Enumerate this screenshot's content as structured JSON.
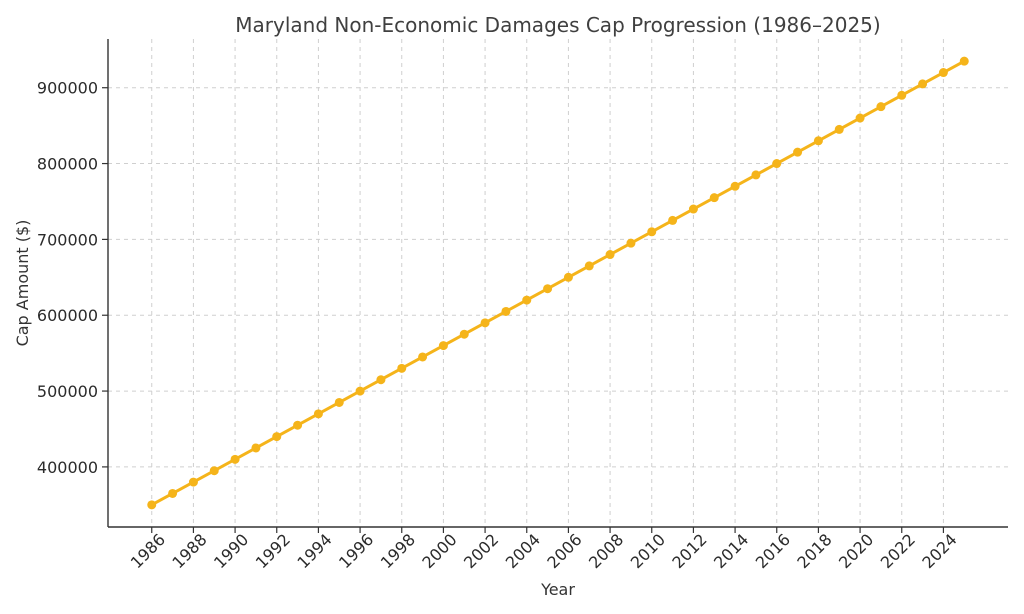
{
  "chart_data": {
    "type": "line",
    "title": "Maryland Non-Economic Damages Cap Progression (1986–2025)",
    "xlabel": "Year",
    "ylabel": "Cap Amount ($)",
    "grid": true,
    "x": [
      1986,
      1987,
      1988,
      1989,
      1990,
      1991,
      1992,
      1993,
      1994,
      1995,
      1996,
      1997,
      1998,
      1999,
      2000,
      2001,
      2002,
      2003,
      2004,
      2005,
      2006,
      2007,
      2008,
      2009,
      2010,
      2011,
      2012,
      2013,
      2014,
      2015,
      2016,
      2017,
      2018,
      2019,
      2020,
      2021,
      2022,
      2023,
      2024,
      2025
    ],
    "series": [
      {
        "values": [
          350000,
          365000,
          380000,
          395000,
          410000,
          425000,
          440000,
          455000,
          470000,
          485000,
          500000,
          515000,
          530000,
          545000,
          560000,
          575000,
          590000,
          605000,
          620000,
          635000,
          650000,
          665000,
          680000,
          695000,
          710000,
          725000,
          740000,
          755000,
          770000,
          785000,
          800000,
          815000,
          830000,
          845000,
          860000,
          875000,
          890000,
          905000,
          920000,
          935000
        ],
        "color": "#F5B41A"
      }
    ],
    "xticks": [
      "1986",
      "1988",
      "1990",
      "1992",
      "1994",
      "1996",
      "1998",
      "2000",
      "2002",
      "2004",
      "2006",
      "2008",
      "2010",
      "2012",
      "2014",
      "2016",
      "2018",
      "2020",
      "2022",
      "2024"
    ],
    "yticks": [
      "400000",
      "500000",
      "600000",
      "700000",
      "800000",
      "900000"
    ],
    "xlim": [
      1983.9,
      2027.1
    ],
    "ylim": [
      320750,
      964250
    ],
    "line_color": "#F5B41A",
    "grid_color": "#CFCFCF",
    "axis_color": "#333333"
  }
}
